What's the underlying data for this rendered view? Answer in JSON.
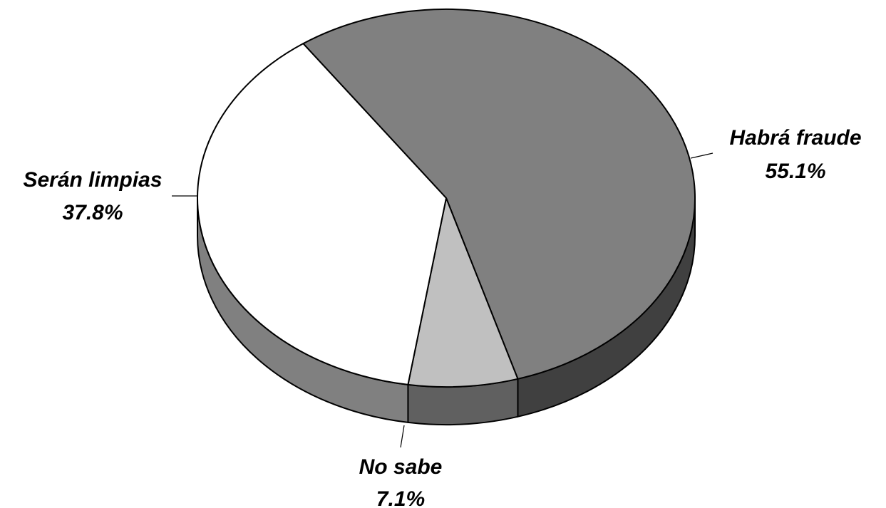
{
  "chart_data": {
    "type": "pie",
    "style": "3d",
    "title": "",
    "slices": [
      {
        "name": "Habrá fraude",
        "value": 55.1,
        "label": "55.1%",
        "color": "#808080",
        "side_color": "#404040"
      },
      {
        "name": "No sabe",
        "value": 7.1,
        "label": "7.1%",
        "color": "#c0c0c0",
        "side_color": "#606060"
      },
      {
        "name": "Serán limpias",
        "value": 37.8,
        "label": "37.8%",
        "color": "#ffffff",
        "side_color": "#808080"
      }
    ]
  }
}
